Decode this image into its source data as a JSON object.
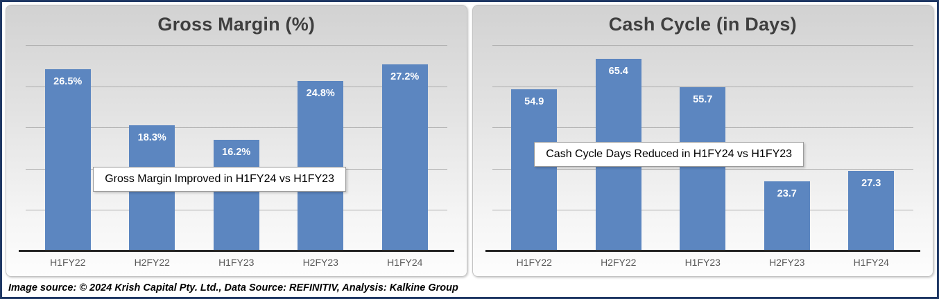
{
  "frame": {
    "border_color": "#1F3864"
  },
  "chart_data": [
    {
      "type": "bar",
      "title": "Gross Margin (%)",
      "categories": [
        "H1FY22",
        "H2FY22",
        "H1FY23",
        "H2FY23",
        "H1FY24"
      ],
      "values": [
        26.5,
        18.3,
        16.2,
        24.8,
        27.2
      ],
      "data_labels": [
        "26.5%",
        "18.3%",
        "16.2%",
        "24.8%",
        "27.2%"
      ],
      "annotation": "Gross Margin Improved in H1FY24 vs H1FY23",
      "xlabel": "",
      "ylabel": "",
      "ylim": [
        0,
        30
      ],
      "gridline_count": 5,
      "grid": "horizontal",
      "legend": "none",
      "y_axis_labels": "hidden",
      "bar_color": "#5C86C0",
      "label_color": "#FFFFFF"
    },
    {
      "type": "bar",
      "title": "Cash Cycle (in Days)",
      "categories": [
        "H1FY22",
        "H2FY22",
        "H1FY23",
        "H2FY23",
        "H1FY24"
      ],
      "values": [
        54.9,
        65.4,
        55.7,
        23.7,
        27.3
      ],
      "data_labels": [
        "54.9",
        "65.4",
        "55.7",
        "23.7",
        "27.3"
      ],
      "annotation": "Cash Cycle Days Reduced in H1FY24 vs H1FY23",
      "xlabel": "",
      "ylabel": "",
      "ylim": [
        0,
        70
      ],
      "gridline_count": 5,
      "grid": "horizontal",
      "legend": "none",
      "y_axis_labels": "hidden",
      "bar_color": "#5C86C0",
      "label_color": "#FFFFFF"
    }
  ],
  "footer": {
    "text": "Image source: © 2024 Krish Capital Pty. Ltd., Data Source: REFINITIV, Analysis: Kalkine Group"
  }
}
